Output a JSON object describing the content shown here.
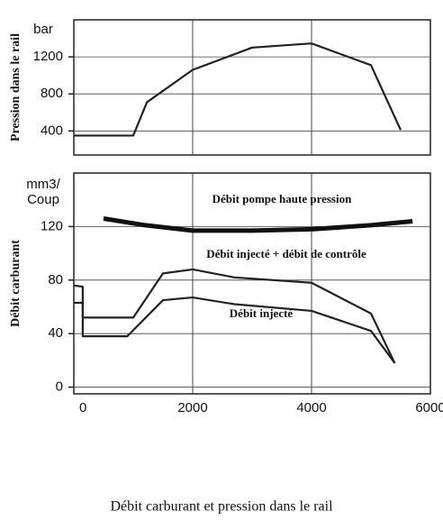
{
  "caption": "Débit carburant et pression dans le rail",
  "chart_data": [
    {
      "type": "line",
      "ylabel": "Pression dans le rail",
      "unit_label": [
        "bar"
      ],
      "xlim": [
        0,
        6000
      ],
      "ylim": [
        140,
        1600
      ],
      "yticks": [
        400,
        800,
        1200
      ],
      "grid": true,
      "series": [
        {
          "name": "Pression",
          "color": "#222",
          "x": [
            0,
            1000,
            1230,
            2000,
            3000,
            4000,
            5000,
            5500
          ],
          "values": [
            350,
            350,
            710,
            1060,
            1300,
            1345,
            1110,
            410
          ]
        }
      ]
    },
    {
      "type": "line",
      "ylabel": "Débit carburant",
      "unit_label": [
        "mm3/",
        "Coup"
      ],
      "xlim": [
        0,
        6000
      ],
      "ylim": [
        -5,
        160
      ],
      "xticks": [
        0,
        2000,
        4000,
        6000
      ],
      "yticks": [
        0,
        40,
        80,
        120
      ],
      "grid": true,
      "series": [
        {
          "name": "Débit pompe haute pression",
          "color": "#111",
          "x": [
            500,
            1200,
            2000,
            3000,
            4000,
            5000,
            5700
          ],
          "values": [
            126,
            121,
            117,
            117,
            118,
            121,
            124
          ]
        },
        {
          "name": "Débit injecté + débit de contrôle",
          "color": "#222",
          "x": [
            0,
            150,
            150,
            1000,
            1500,
            2000,
            2700,
            4000,
            5000,
            5400
          ],
          "values": [
            76,
            75,
            52,
            52,
            85,
            88,
            82,
            78,
            55,
            18
          ]
        },
        {
          "name": "Débit injecté",
          "color": "#222",
          "x": [
            0,
            150,
            150,
            900,
            1500,
            2000,
            2700,
            4000,
            5000,
            5400
          ],
          "values": [
            63,
            63,
            38,
            38,
            65,
            67,
            62,
            57,
            42,
            18
          ]
        }
      ]
    }
  ]
}
